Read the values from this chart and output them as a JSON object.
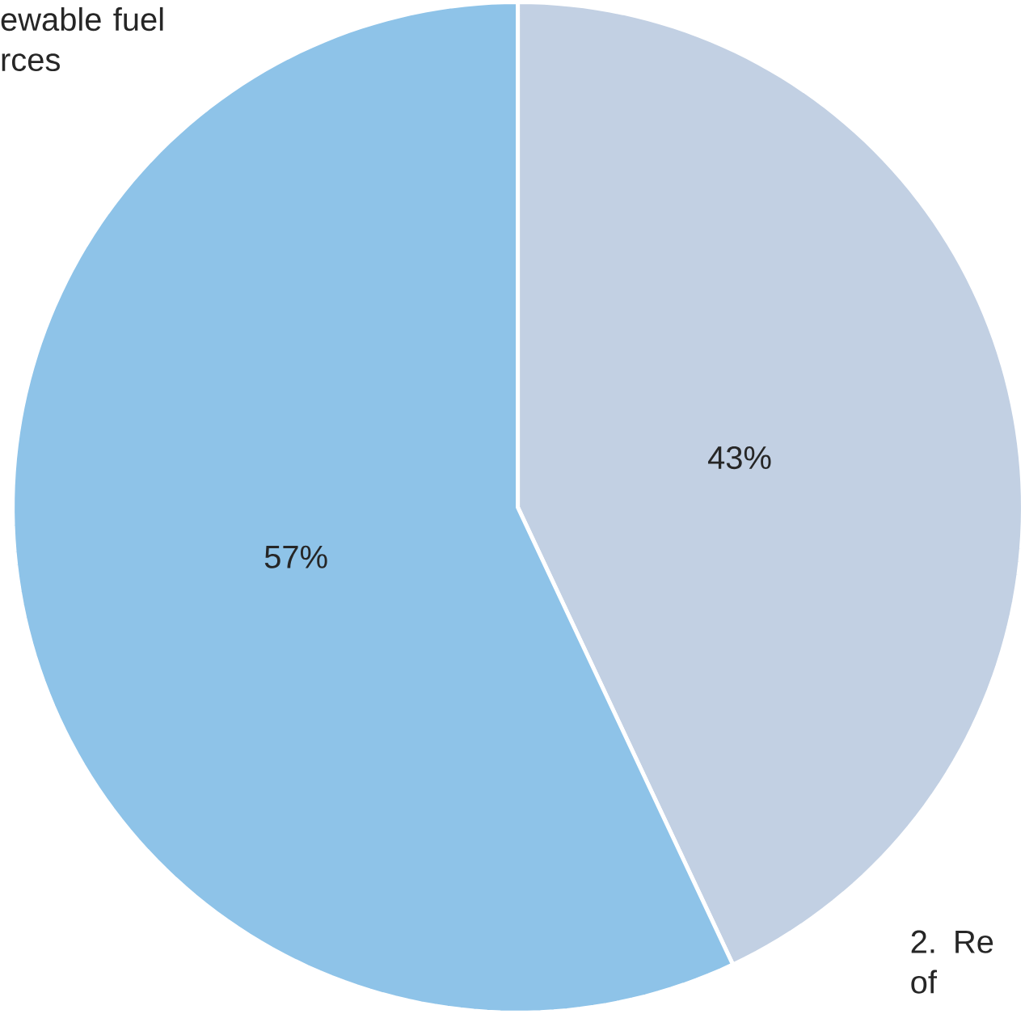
{
  "chart_data": {
    "type": "pie",
    "categories": [
      "2. Re of",
      "ewable fuel rces"
    ],
    "values": [
      43,
      57
    ],
    "colors": [
      "#c2d0e3",
      "#8ec3e8"
    ],
    "value_labels": [
      "43%",
      "57%"
    ]
  }
}
